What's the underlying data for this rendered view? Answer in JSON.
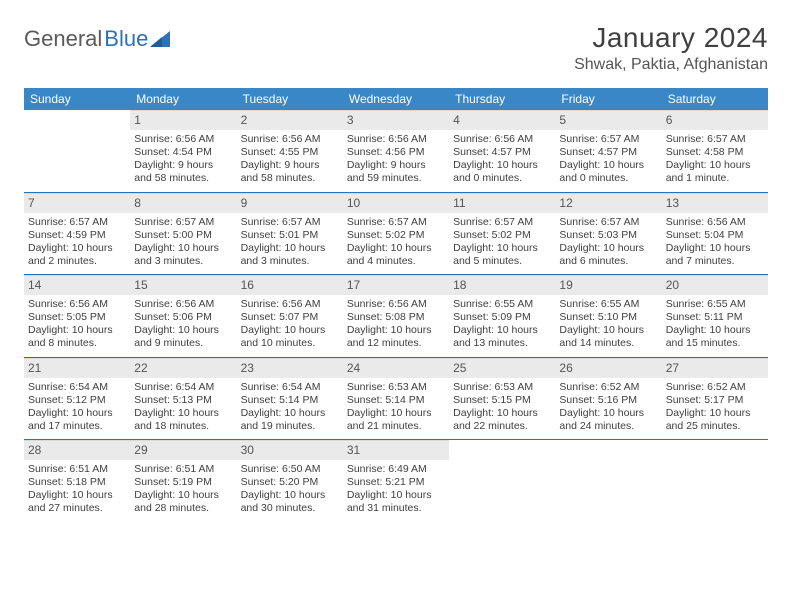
{
  "logo": {
    "part1": "General",
    "part2": "Blue"
  },
  "title": "January 2024",
  "location": "Shwak, Paktia, Afghanistan",
  "colors": {
    "header_bg": "#3a87c8",
    "header_text": "#ffffff",
    "daynum_bg": "#eaeaea",
    "week_border": "#2d71b8",
    "logo_gray": "#5a5a5a",
    "logo_blue": "#2d71b8"
  },
  "weekdays": [
    "Sunday",
    "Monday",
    "Tuesday",
    "Wednesday",
    "Thursday",
    "Friday",
    "Saturday"
  ],
  "weeks": [
    [
      null,
      {
        "n": "1",
        "sr": "6:56 AM",
        "ss": "4:54 PM",
        "dl": "9 hours and 58 minutes."
      },
      {
        "n": "2",
        "sr": "6:56 AM",
        "ss": "4:55 PM",
        "dl": "9 hours and 58 minutes."
      },
      {
        "n": "3",
        "sr": "6:56 AM",
        "ss": "4:56 PM",
        "dl": "9 hours and 59 minutes."
      },
      {
        "n": "4",
        "sr": "6:56 AM",
        "ss": "4:57 PM",
        "dl": "10 hours and 0 minutes."
      },
      {
        "n": "5",
        "sr": "6:57 AM",
        "ss": "4:57 PM",
        "dl": "10 hours and 0 minutes."
      },
      {
        "n": "6",
        "sr": "6:57 AM",
        "ss": "4:58 PM",
        "dl": "10 hours and 1 minute."
      }
    ],
    [
      {
        "n": "7",
        "sr": "6:57 AM",
        "ss": "4:59 PM",
        "dl": "10 hours and 2 minutes."
      },
      {
        "n": "8",
        "sr": "6:57 AM",
        "ss": "5:00 PM",
        "dl": "10 hours and 3 minutes."
      },
      {
        "n": "9",
        "sr": "6:57 AM",
        "ss": "5:01 PM",
        "dl": "10 hours and 3 minutes."
      },
      {
        "n": "10",
        "sr": "6:57 AM",
        "ss": "5:02 PM",
        "dl": "10 hours and 4 minutes."
      },
      {
        "n": "11",
        "sr": "6:57 AM",
        "ss": "5:02 PM",
        "dl": "10 hours and 5 minutes."
      },
      {
        "n": "12",
        "sr": "6:57 AM",
        "ss": "5:03 PM",
        "dl": "10 hours and 6 minutes."
      },
      {
        "n": "13",
        "sr": "6:56 AM",
        "ss": "5:04 PM",
        "dl": "10 hours and 7 minutes."
      }
    ],
    [
      {
        "n": "14",
        "sr": "6:56 AM",
        "ss": "5:05 PM",
        "dl": "10 hours and 8 minutes."
      },
      {
        "n": "15",
        "sr": "6:56 AM",
        "ss": "5:06 PM",
        "dl": "10 hours and 9 minutes."
      },
      {
        "n": "16",
        "sr": "6:56 AM",
        "ss": "5:07 PM",
        "dl": "10 hours and 10 minutes."
      },
      {
        "n": "17",
        "sr": "6:56 AM",
        "ss": "5:08 PM",
        "dl": "10 hours and 12 minutes."
      },
      {
        "n": "18",
        "sr": "6:55 AM",
        "ss": "5:09 PM",
        "dl": "10 hours and 13 minutes."
      },
      {
        "n": "19",
        "sr": "6:55 AM",
        "ss": "5:10 PM",
        "dl": "10 hours and 14 minutes."
      },
      {
        "n": "20",
        "sr": "6:55 AM",
        "ss": "5:11 PM",
        "dl": "10 hours and 15 minutes."
      }
    ],
    [
      {
        "n": "21",
        "sr": "6:54 AM",
        "ss": "5:12 PM",
        "dl": "10 hours and 17 minutes."
      },
      {
        "n": "22",
        "sr": "6:54 AM",
        "ss": "5:13 PM",
        "dl": "10 hours and 18 minutes."
      },
      {
        "n": "23",
        "sr": "6:54 AM",
        "ss": "5:14 PM",
        "dl": "10 hours and 19 minutes."
      },
      {
        "n": "24",
        "sr": "6:53 AM",
        "ss": "5:14 PM",
        "dl": "10 hours and 21 minutes."
      },
      {
        "n": "25",
        "sr": "6:53 AM",
        "ss": "5:15 PM",
        "dl": "10 hours and 22 minutes."
      },
      {
        "n": "26",
        "sr": "6:52 AM",
        "ss": "5:16 PM",
        "dl": "10 hours and 24 minutes."
      },
      {
        "n": "27",
        "sr": "6:52 AM",
        "ss": "5:17 PM",
        "dl": "10 hours and 25 minutes."
      }
    ],
    [
      {
        "n": "28",
        "sr": "6:51 AM",
        "ss": "5:18 PM",
        "dl": "10 hours and 27 minutes."
      },
      {
        "n": "29",
        "sr": "6:51 AM",
        "ss": "5:19 PM",
        "dl": "10 hours and 28 minutes."
      },
      {
        "n": "30",
        "sr": "6:50 AM",
        "ss": "5:20 PM",
        "dl": "10 hours and 30 minutes."
      },
      {
        "n": "31",
        "sr": "6:49 AM",
        "ss": "5:21 PM",
        "dl": "10 hours and 31 minutes."
      },
      null,
      null,
      null
    ]
  ],
  "labels": {
    "sunrise": "Sunrise:",
    "sunset": "Sunset:",
    "daylight": "Daylight:"
  }
}
